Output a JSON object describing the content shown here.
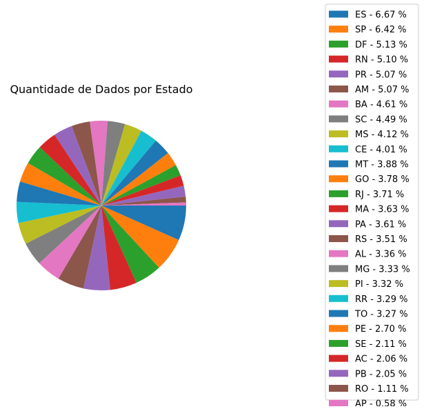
{
  "chart_data": {
    "type": "pie",
    "title": "Quantidade de Dados por Estado",
    "legend_position": "right",
    "slices": [
      {
        "label": "ES - 6.67 %",
        "state": "ES",
        "value": 6.67,
        "color": "#1f77b4"
      },
      {
        "label": "SP - 6.42 %",
        "state": "SP",
        "value": 6.42,
        "color": "#ff7f0e"
      },
      {
        "label": "DF - 5.13 %",
        "state": "DF",
        "value": 5.13,
        "color": "#2ca02c"
      },
      {
        "label": "RN - 5.10 %",
        "state": "RN",
        "value": 5.1,
        "color": "#d62728"
      },
      {
        "label": "PR - 5.07 %",
        "state": "PR",
        "value": 5.07,
        "color": "#9467bd"
      },
      {
        "label": "AM - 5.07 %",
        "state": "AM",
        "value": 5.07,
        "color": "#8c564b"
      },
      {
        "label": "BA - 4.61 %",
        "state": "BA",
        "value": 4.61,
        "color": "#e377c2"
      },
      {
        "label": "SC - 4.49 %",
        "state": "SC",
        "value": 4.49,
        "color": "#7f7f7f"
      },
      {
        "label": "MS - 4.12 %",
        "state": "MS",
        "value": 4.12,
        "color": "#bcbd22"
      },
      {
        "label": "CE - 4.01 %",
        "state": "CE",
        "value": 4.01,
        "color": "#17becf"
      },
      {
        "label": "MT - 3.88 %",
        "state": "MT",
        "value": 3.88,
        "color": "#1f77b4"
      },
      {
        "label": "GO - 3.78 %",
        "state": "GO",
        "value": 3.78,
        "color": "#ff7f0e"
      },
      {
        "label": "RJ - 3.71 %",
        "state": "RJ",
        "value": 3.71,
        "color": "#2ca02c"
      },
      {
        "label": "MA - 3.63 %",
        "state": "MA",
        "value": 3.63,
        "color": "#d62728"
      },
      {
        "label": "PA - 3.61 %",
        "state": "PA",
        "value": 3.61,
        "color": "#9467bd"
      },
      {
        "label": "RS - 3.51 %",
        "state": "RS",
        "value": 3.51,
        "color": "#8c564b"
      },
      {
        "label": "AL - 3.36 %",
        "state": "AL",
        "value": 3.36,
        "color": "#e377c2"
      },
      {
        "label": "MG - 3.33 %",
        "state": "MG",
        "value": 3.33,
        "color": "#7f7f7f"
      },
      {
        "label": "PI - 3.32 %",
        "state": "PI",
        "value": 3.32,
        "color": "#bcbd22"
      },
      {
        "label": "RR - 3.29 %",
        "state": "RR",
        "value": 3.29,
        "color": "#17becf"
      },
      {
        "label": "TO - 3.27 %",
        "state": "TO",
        "value": 3.27,
        "color": "#1f77b4"
      },
      {
        "label": "PE - 2.70 %",
        "state": "PE",
        "value": 2.7,
        "color": "#ff7f0e"
      },
      {
        "label": "SE - 2.11 %",
        "state": "SE",
        "value": 2.11,
        "color": "#2ca02c"
      },
      {
        "label": "AC - 2.06 %",
        "state": "AC",
        "value": 2.06,
        "color": "#d62728"
      },
      {
        "label": "PB - 2.05 %",
        "state": "PB",
        "value": 2.05,
        "color": "#9467bd"
      },
      {
        "label": "RO - 1.11 %",
        "state": "RO",
        "value": 1.11,
        "color": "#8c564b"
      },
      {
        "label": "AP - 0.58 %",
        "state": "AP",
        "value": 0.58,
        "color": "#e377c2"
      }
    ]
  }
}
